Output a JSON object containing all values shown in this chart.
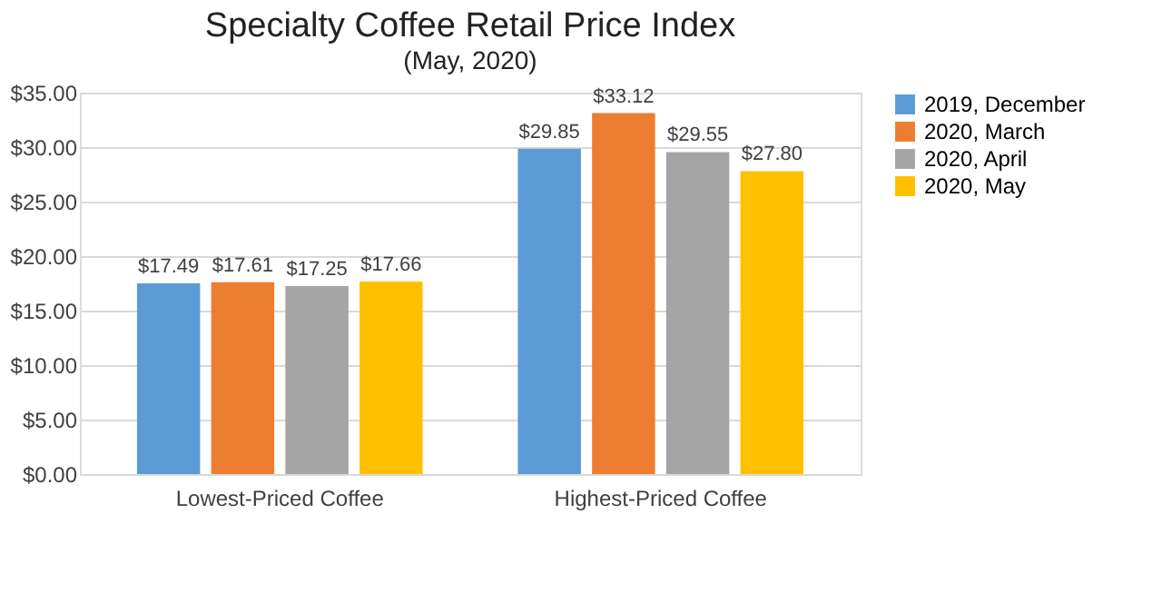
{
  "chart_data": {
    "type": "bar",
    "title": "Specialty Coffee Retail Price Index",
    "subtitle": "(May, 2020)",
    "categories": [
      "Lowest-Priced Coffee",
      "Highest-Priced Coffee"
    ],
    "series": [
      {
        "name": "2019, December",
        "color": "#5b9bd5",
        "values": [
          17.49,
          29.85
        ]
      },
      {
        "name": "2020, March",
        "color": "#ed7d31",
        "values": [
          17.61,
          33.12
        ]
      },
      {
        "name": "2020, April",
        "color": "#a5a5a5",
        "values": [
          17.25,
          29.55
        ]
      },
      {
        "name": "2020, May",
        "color": "#ffc000",
        "values": [
          17.66,
          27.8
        ]
      }
    ],
    "ylim": [
      0,
      35
    ],
    "yticks": [
      {
        "value": 0,
        "label": "$0.00"
      },
      {
        "value": 5,
        "label": "$5.00"
      },
      {
        "value": 10,
        "label": "$10.00"
      },
      {
        "value": 15,
        "label": "$15.00"
      },
      {
        "value": 20,
        "label": "$20.00"
      },
      {
        "value": 25,
        "label": "$25.00"
      },
      {
        "value": 30,
        "label": "$30.00"
      },
      {
        "value": 35,
        "label": "$35.00"
      }
    ],
    "value_labels": [
      [
        "$17.49",
        "$29.85"
      ],
      [
        "$17.61",
        "$33.12"
      ],
      [
        "$17.25",
        "$29.55"
      ],
      [
        "$17.66",
        "$27.80"
      ]
    ],
    "grid": "y",
    "legend": "right"
  }
}
